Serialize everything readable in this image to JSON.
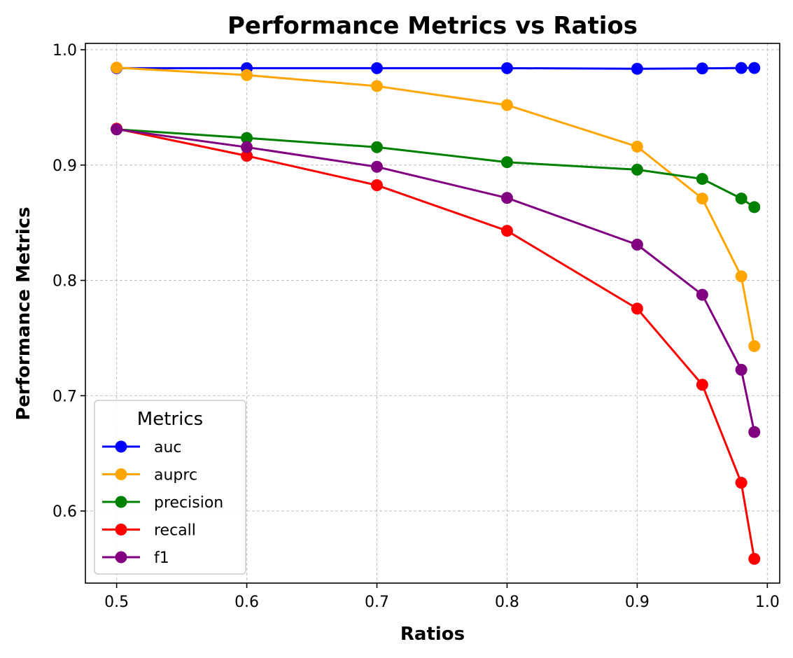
{
  "chart_data": {
    "type": "line",
    "title": "Performance Metrics vs Ratios",
    "xlabel": "Ratios",
    "ylabel": "Performance Metrics",
    "x": [
      0.5,
      0.6,
      0.7,
      0.8,
      0.9,
      0.95,
      0.98,
      0.99
    ],
    "xlim": [
      0.476,
      1.0095
    ],
    "ylim": [
      0.5375,
      1.0055
    ],
    "xticks": [
      0.5,
      0.6,
      0.7,
      0.8,
      0.9,
      1.0
    ],
    "xtick_labels": [
      "0.5",
      "0.6",
      "0.7",
      "0.8",
      "0.9",
      "1.0"
    ],
    "yticks": [
      0.6,
      0.7,
      0.8,
      0.9,
      1.0
    ],
    "ytick_labels": [
      "0.6",
      "0.7",
      "0.8",
      "0.9",
      "1.0"
    ],
    "grid": true,
    "legend": {
      "title": "Metrics",
      "placement": "lower-left"
    },
    "series": [
      {
        "name": "auc",
        "color": "#0000ff",
        "values": [
          0.984,
          0.984,
          0.984,
          0.984,
          0.9835,
          0.9838,
          0.9842,
          0.9842
        ]
      },
      {
        "name": "auprc",
        "color": "#ffa500",
        "values": [
          0.9845,
          0.978,
          0.9685,
          0.952,
          0.916,
          0.871,
          0.8035,
          0.743
        ]
      },
      {
        "name": "precision",
        "color": "#008000",
        "values": [
          0.931,
          0.9235,
          0.9155,
          0.9025,
          0.896,
          0.888,
          0.871,
          0.8635
        ]
      },
      {
        "name": "recall",
        "color": "#ff0000",
        "values": [
          0.9315,
          0.908,
          0.8825,
          0.843,
          0.7755,
          0.7095,
          0.6245,
          0.5585
        ]
      },
      {
        "name": "f1",
        "color": "#800080",
        "values": [
          0.931,
          0.9155,
          0.8985,
          0.8715,
          0.831,
          0.7875,
          0.7225,
          0.6685
        ]
      }
    ]
  }
}
